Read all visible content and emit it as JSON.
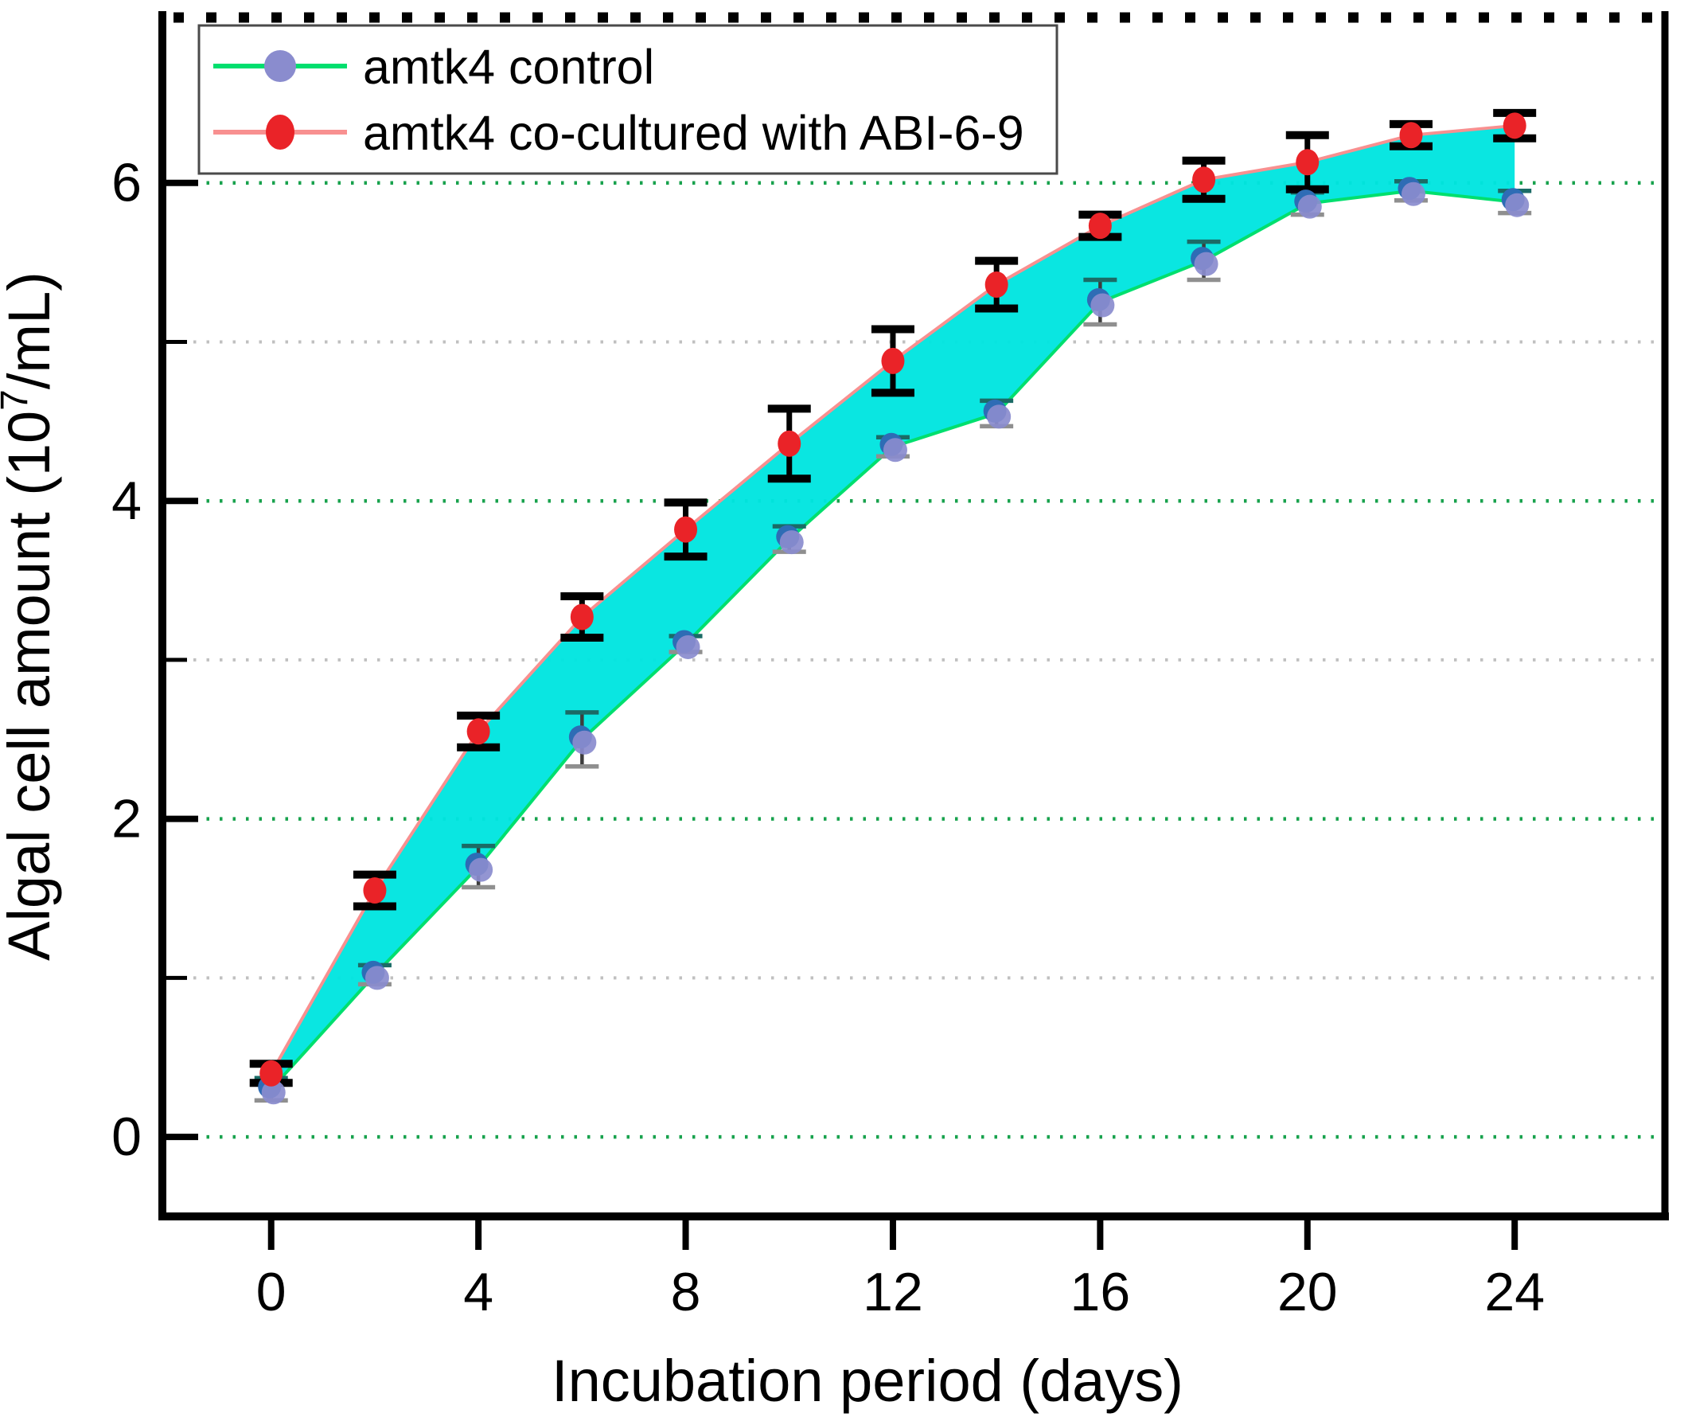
{
  "chart_data": {
    "type": "line",
    "title": "",
    "xlabel": "Incubation period (days)",
    "ylabel": "Algal cell amount (10⁷/mL)",
    "ylabel_parts": {
      "prefix": "Algal cell amount (10",
      "sup": "7",
      "suffix": "/mL)"
    },
    "x": [
      0,
      2,
      4,
      6,
      8,
      10,
      12,
      14,
      16,
      18,
      20,
      22,
      24
    ],
    "series": [
      {
        "name": "amtk4 control",
        "values": [
          0.3,
          1.02,
          1.7,
          2.5,
          3.1,
          3.76,
          4.34,
          4.55,
          5.25,
          5.51,
          5.87,
          5.95,
          5.88
        ],
        "errors": [
          0.07,
          0.06,
          0.13,
          0.17,
          0.05,
          0.08,
          0.06,
          0.08,
          0.14,
          0.12,
          0.07,
          0.06,
          0.07
        ],
        "line_color": "#00df6e",
        "marker_color": "#8a8cce",
        "marker_core_color": "#2e6cb5",
        "errorbar_color": "#3d3d3d",
        "errorbar_cap_top_color": "#1b6b66",
        "errorbar_cap_bottom_color": "#8f8f8f"
      },
      {
        "name": "amtk4 co-cultured with ABI-6-9",
        "values": [
          0.4,
          1.55,
          2.55,
          3.27,
          3.82,
          4.36,
          4.88,
          5.36,
          5.73,
          6.02,
          6.13,
          6.3,
          6.36
        ],
        "errors": [
          0.06,
          0.1,
          0.1,
          0.13,
          0.17,
          0.22,
          0.2,
          0.15,
          0.07,
          0.12,
          0.17,
          0.07,
          0.08
        ],
        "line_color": "#f89090",
        "marker_color": "#ea2328",
        "errorbar_color": "#000000",
        "errorbar_cap_top_color": "#000000",
        "errorbar_cap_bottom_color": "#000000"
      }
    ],
    "band_fill": "#00e5e0",
    "xticks": [
      0,
      4,
      8,
      12,
      16,
      20,
      24
    ],
    "yticks": [
      0,
      2,
      4,
      6
    ],
    "yticks_minor": [
      1,
      3,
      5
    ],
    "xlim": [
      -2.1,
      26.9
    ],
    "ylim": [
      -0.5,
      7.05
    ],
    "grid": "horizontal dotted, major green / minor grey",
    "grid_major_color": "#18a24d",
    "grid_minor_color": "#c0c0c0",
    "axis_color": "#000000",
    "legend_position": "top-left",
    "legend_border_color": "#4a4a4a"
  }
}
